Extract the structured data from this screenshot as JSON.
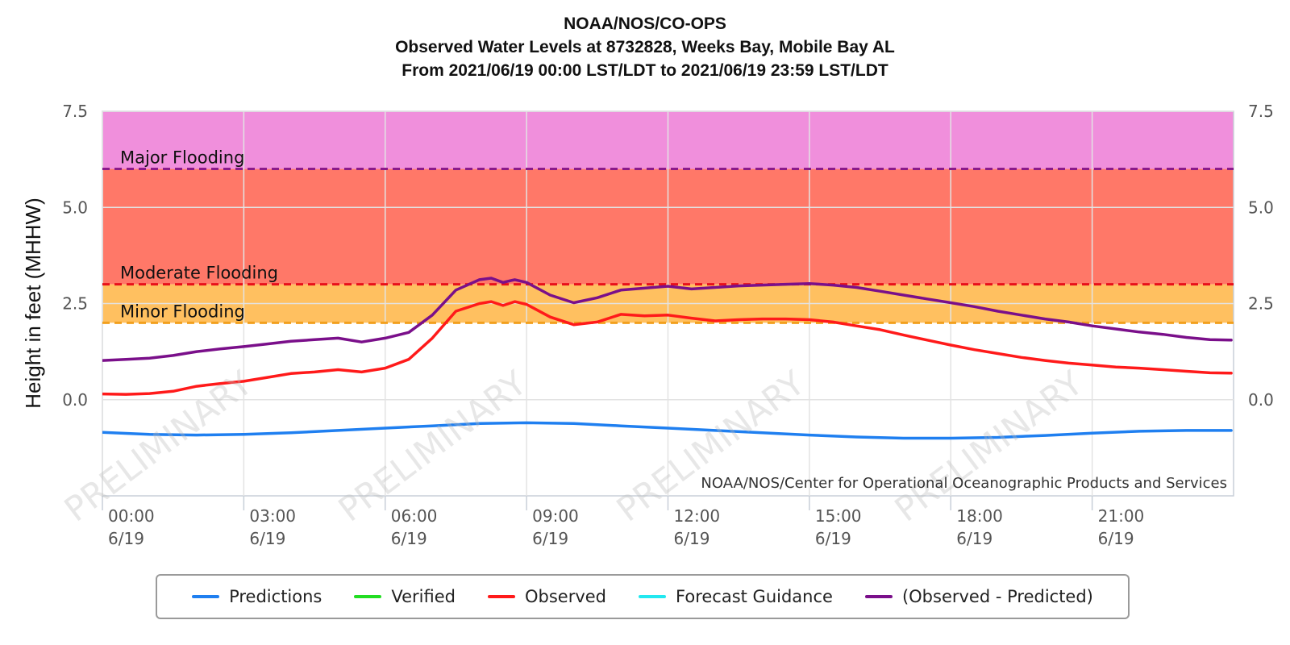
{
  "header": {
    "line1": "NOAA/NOS/CO-OPS",
    "line2": "Observed Water Levels at 8732828, Weeks Bay, Mobile Bay AL",
    "line3": "From 2021/06/19 00:00 LST/LDT to 2021/06/19 23:59 LST/LDT"
  },
  "legend": [
    {
      "label": "Predictions",
      "color": "#1f7ff0"
    },
    {
      "label": "Verified",
      "color": "#22dd22"
    },
    {
      "label": "Observed",
      "color": "#ff1a1a"
    },
    {
      "label": "Forecast Guidance",
      "color": "#22e8f0"
    },
    {
      "label": "(Observed - Predicted)",
      "color": "#7a0f8a"
    }
  ],
  "chart_data": {
    "type": "line",
    "ylabel": "Height in feet (MHHW)",
    "xlabel": "",
    "ylim": [
      -2.5,
      7.5
    ],
    "xlim_hours": [
      0,
      24
    ],
    "y_ticks": [
      "7.5",
      "5.0",
      "2.5",
      "0.0"
    ],
    "x_ticks": [
      {
        "time": "00:00",
        "date": "6/19"
      },
      {
        "time": "03:00",
        "date": "6/19"
      },
      {
        "time": "06:00",
        "date": "6/19"
      },
      {
        "time": "09:00",
        "date": "6/19"
      },
      {
        "time": "12:00",
        "date": "6/19"
      },
      {
        "time": "15:00",
        "date": "6/19"
      },
      {
        "time": "18:00",
        "date": "6/19"
      },
      {
        "time": "21:00",
        "date": "6/19"
      }
    ],
    "grid": true,
    "legend_position": "bottom",
    "credit": "NOAA/NOS/Center for Operational Oceanographic Products and Services",
    "watermark": "PRELIMINARY",
    "thresholds": [
      {
        "name": "Major Flooding",
        "value": 6.0,
        "color": "#8b1a8b",
        "band_color": "#f08fdc"
      },
      {
        "name": "Moderate Flooding",
        "value": 3.0,
        "color": "#e8101a",
        "band_color": "#ff7868"
      },
      {
        "name": "Minor Flooding",
        "value": 2.0,
        "color": "#f2a01e",
        "band_color": "#ffc060"
      }
    ],
    "series": [
      {
        "name": "Predictions",
        "color": "#1f7ff0",
        "x": [
          0,
          1,
          2,
          3,
          4,
          5,
          6,
          7,
          8,
          9,
          10,
          11,
          12,
          13,
          14,
          15,
          16,
          17,
          18,
          19,
          20,
          21,
          22,
          23,
          23.95
        ],
        "y": [
          -0.85,
          -0.9,
          -0.92,
          -0.9,
          -0.86,
          -0.8,
          -0.74,
          -0.68,
          -0.62,
          -0.6,
          -0.62,
          -0.68,
          -0.74,
          -0.8,
          -0.86,
          -0.92,
          -0.97,
          -1.0,
          -1.0,
          -0.98,
          -0.93,
          -0.87,
          -0.82,
          -0.8,
          -0.8
        ]
      },
      {
        "name": "Observed",
        "color": "#ff1a1a",
        "x": [
          0,
          0.5,
          1,
          1.5,
          2,
          2.5,
          3,
          3.5,
          4,
          4.5,
          5,
          5.5,
          6,
          6.5,
          7,
          7.5,
          8,
          8.25,
          8.5,
          8.75,
          9,
          9.5,
          10,
          10.5,
          11,
          11.5,
          12,
          12.5,
          13,
          13.5,
          14,
          14.5,
          15,
          15.5,
          16,
          16.5,
          17,
          17.5,
          18,
          18.5,
          19,
          19.5,
          20,
          20.5,
          21,
          21.5,
          22,
          22.5,
          23,
          23.5,
          23.95
        ],
        "y": [
          0.15,
          0.14,
          0.16,
          0.22,
          0.35,
          0.42,
          0.48,
          0.58,
          0.68,
          0.72,
          0.78,
          0.72,
          0.82,
          1.05,
          1.6,
          2.3,
          2.5,
          2.55,
          2.45,
          2.55,
          2.48,
          2.15,
          1.95,
          2.02,
          2.22,
          2.18,
          2.2,
          2.12,
          2.05,
          2.08,
          2.1,
          2.1,
          2.08,
          2.02,
          1.92,
          1.82,
          1.68,
          1.55,
          1.42,
          1.3,
          1.2,
          1.1,
          1.02,
          0.95,
          0.9,
          0.85,
          0.82,
          0.78,
          0.74,
          0.7,
          0.69
        ]
      },
      {
        "name": "(Observed - Predicted)",
        "color": "#7a0f8a",
        "x": [
          0,
          0.5,
          1,
          1.5,
          2,
          2.5,
          3,
          3.5,
          4,
          4.5,
          5,
          5.5,
          6,
          6.5,
          7,
          7.5,
          8,
          8.25,
          8.5,
          8.75,
          9,
          9.5,
          10,
          10.5,
          11,
          11.5,
          12,
          12.5,
          13,
          13.5,
          14,
          14.5,
          15,
          15.5,
          16,
          16.5,
          17,
          17.5,
          18,
          18.5,
          19,
          19.5,
          20,
          20.5,
          21,
          21.5,
          22,
          22.5,
          23,
          23.5,
          23.95
        ],
        "y": [
          1.02,
          1.05,
          1.08,
          1.15,
          1.25,
          1.32,
          1.38,
          1.45,
          1.52,
          1.56,
          1.6,
          1.5,
          1.6,
          1.75,
          2.2,
          2.85,
          3.12,
          3.16,
          3.05,
          3.12,
          3.05,
          2.72,
          2.52,
          2.65,
          2.85,
          2.9,
          2.95,
          2.88,
          2.92,
          2.96,
          2.98,
          3.0,
          3.02,
          2.98,
          2.92,
          2.82,
          2.72,
          2.62,
          2.52,
          2.42,
          2.3,
          2.2,
          2.1,
          2.02,
          1.92,
          1.84,
          1.76,
          1.7,
          1.62,
          1.56,
          1.55
        ]
      }
    ]
  }
}
